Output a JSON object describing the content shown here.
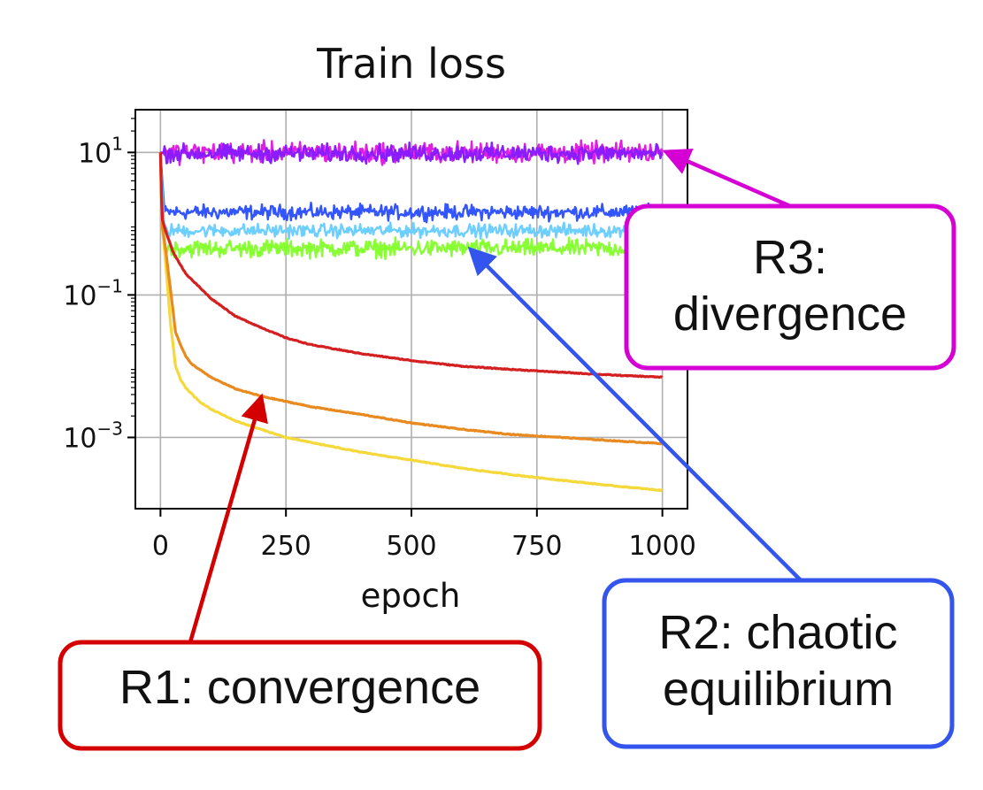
{
  "chart_data": {
    "type": "line",
    "title": "Train loss",
    "xlabel": "epoch",
    "ylabel": "",
    "xlim": [
      -50,
      1050
    ],
    "ylim_log10": [
      -4.0,
      1.6
    ],
    "yscale": "log",
    "grid": true,
    "x_ticks": [
      0,
      250,
      500,
      750,
      1000
    ],
    "y_ticks": [
      {
        "value": 10,
        "base": "10",
        "exp": "1"
      },
      {
        "value": 0.1,
        "base": "10",
        "exp": "−1"
      },
      {
        "value": 0.001,
        "base": "10",
        "exp": "−3"
      }
    ],
    "series": [
      {
        "name": "R3 run (magenta)",
        "regime": "R3",
        "color": "#e020e0",
        "kind": "noisy",
        "start": 10,
        "level": 10,
        "noise": 0.07
      },
      {
        "name": "R3 run (violet)",
        "regime": "R3",
        "color": "#8a1cff",
        "kind": "noisy",
        "start": 10,
        "level": 9.7,
        "noise": 0.06
      },
      {
        "name": "R2 run (blue)",
        "regime": "R2",
        "color": "#3355ff",
        "kind": "noisy",
        "start": 10,
        "level": 1.45,
        "noise": 0.05
      },
      {
        "name": "R2 run (light blue)",
        "regime": "R2",
        "color": "#6ccfff",
        "kind": "noisy",
        "start": 10,
        "level": 0.8,
        "noise": 0.045
      },
      {
        "name": "R2 run (green)",
        "regime": "R2",
        "color": "#88ff33",
        "kind": "noisy",
        "start": 10,
        "level": 0.45,
        "noise": 0.06
      },
      {
        "name": "R1 run (red)",
        "regime": "R1",
        "color": "#d42020",
        "kind": "smooth",
        "points": [
          [
            0,
            10
          ],
          [
            3,
            1.2
          ],
          [
            10,
            0.8
          ],
          [
            25,
            0.4
          ],
          [
            50,
            0.2
          ],
          [
            100,
            0.09
          ],
          [
            150,
            0.05
          ],
          [
            200,
            0.035
          ],
          [
            250,
            0.025
          ],
          [
            300,
            0.02
          ],
          [
            400,
            0.015
          ],
          [
            500,
            0.012
          ],
          [
            600,
            0.01
          ],
          [
            700,
            0.009
          ],
          [
            800,
            0.0082
          ],
          [
            900,
            0.0075
          ],
          [
            1000,
            0.007
          ]
        ]
      },
      {
        "name": "R1 run (orange)",
        "regime": "R1",
        "color": "#e88a20",
        "kind": "smooth",
        "points": [
          [
            0,
            10
          ],
          [
            3,
            1.0
          ],
          [
            10,
            0.45
          ],
          [
            20,
            0.12
          ],
          [
            30,
            0.03
          ],
          [
            40,
            0.02
          ],
          [
            50,
            0.014
          ],
          [
            60,
            0.011
          ],
          [
            100,
            0.007
          ],
          [
            150,
            0.0048
          ],
          [
            200,
            0.0038
          ],
          [
            250,
            0.0032
          ],
          [
            300,
            0.0027
          ],
          [
            400,
            0.0021
          ],
          [
            500,
            0.0016
          ],
          [
            600,
            0.0013
          ],
          [
            700,
            0.0011
          ],
          [
            800,
            0.001
          ],
          [
            900,
            0.0009
          ],
          [
            1000,
            0.00082
          ]
        ]
      },
      {
        "name": "R1 run (yellow)",
        "regime": "R1",
        "color": "#f5d83a",
        "kind": "smooth",
        "points": [
          [
            0,
            10
          ],
          [
            3,
            1.0
          ],
          [
            10,
            0.3
          ],
          [
            20,
            0.04
          ],
          [
            30,
            0.01
          ],
          [
            40,
            0.0065
          ],
          [
            50,
            0.005
          ],
          [
            75,
            0.0033
          ],
          [
            100,
            0.0025
          ],
          [
            150,
            0.0017
          ],
          [
            200,
            0.0013
          ],
          [
            250,
            0.001
          ],
          [
            300,
            0.00085
          ],
          [
            400,
            0.00062
          ],
          [
            500,
            0.00048
          ],
          [
            600,
            0.00037
          ],
          [
            700,
            0.0003
          ],
          [
            800,
            0.00025
          ],
          [
            900,
            0.00021
          ],
          [
            1000,
            0.00018
          ]
        ]
      }
    ],
    "annotations": [
      {
        "id": "r1",
        "lines": [
          "R1: convergence"
        ],
        "color": "#d40000",
        "target": [
          200,
          0.0035
        ]
      },
      {
        "id": "r2",
        "lines": [
          "R2: chaotic",
          "equilibrium"
        ],
        "color": "#3355ee",
        "target": [
          620,
          0.42
        ]
      },
      {
        "id": "r3",
        "lines": [
          "R3:",
          "divergence"
        ],
        "color": "#d400d4",
        "target": [
          1010,
          10
        ]
      }
    ]
  }
}
